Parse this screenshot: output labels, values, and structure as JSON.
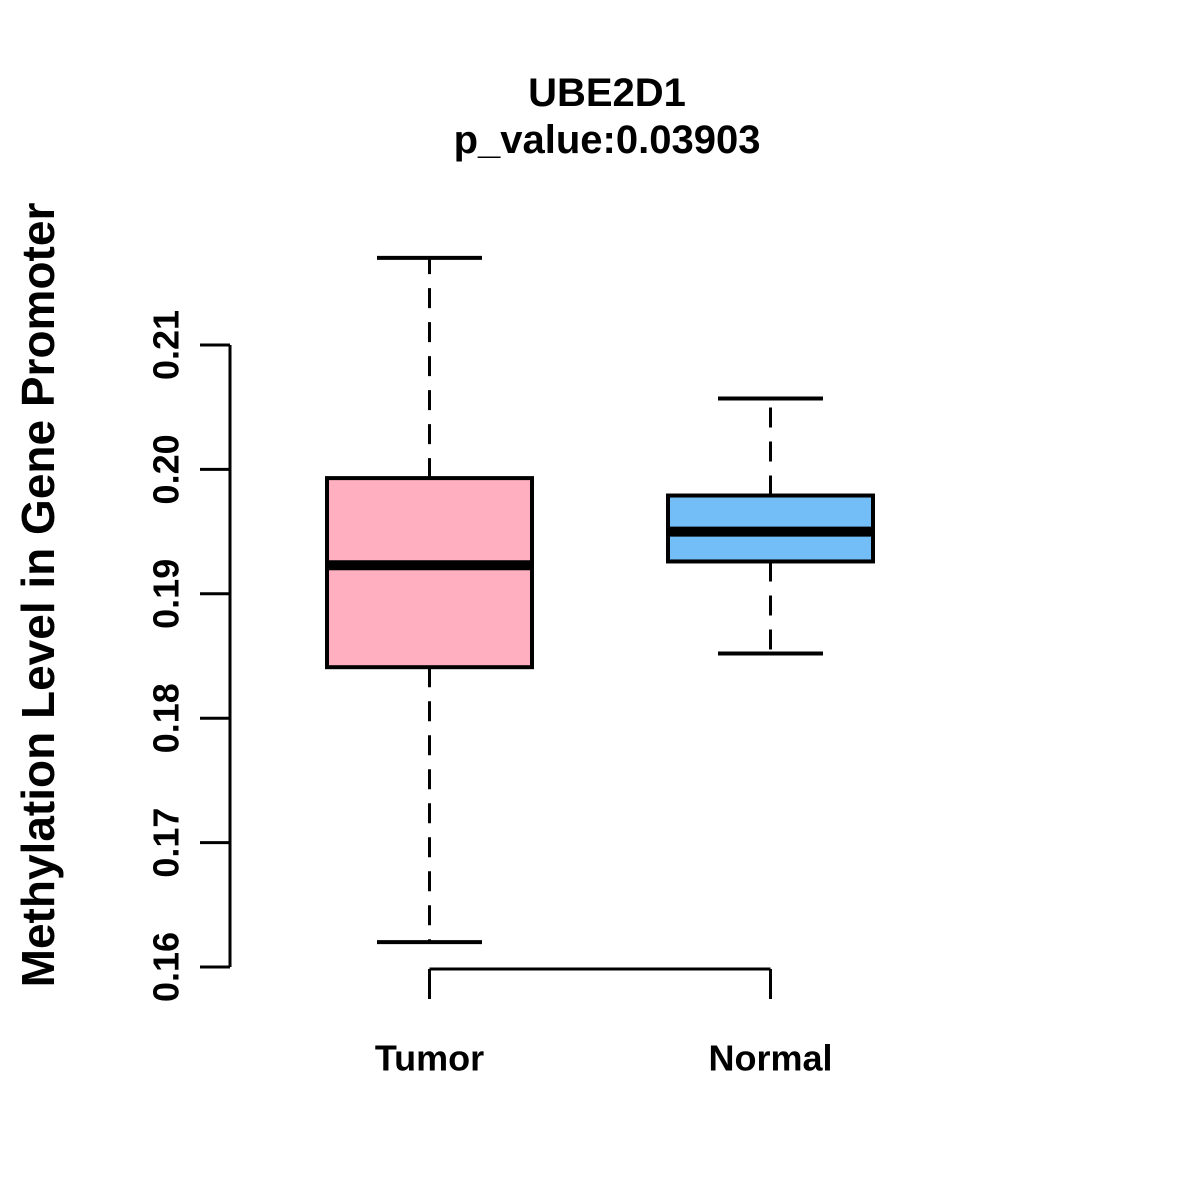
{
  "figure": {
    "title": "UBE2D1",
    "subtitle": "p_value:0.03903",
    "ylabel": "Methylation Level in Gene Promoter",
    "background_color": "#FFFFFF",
    "axis_color": "#000000"
  },
  "chart_data": {
    "type": "boxplot",
    "title": "UBE2D1",
    "subtitle": "p_value:0.03903",
    "p_value": 0.03903,
    "ylabel": "Methylation Level in Gene Promoter",
    "xlabel": "",
    "ylim": [
      0.16,
      0.21
    ],
    "yticks": [
      "0.16",
      "0.17",
      "0.18",
      "0.19",
      "0.20",
      "0.21"
    ],
    "grid": false,
    "legend": false,
    "whisker_style": "dashed",
    "categories": [
      "Tumor",
      "Normal"
    ],
    "series": [
      {
        "name": "Tumor",
        "fill_color": "#FFAFC0",
        "whisker_low": 0.162,
        "q1": 0.1841,
        "median": 0.1923,
        "q3": 0.1993,
        "whisker_high": 0.217,
        "outliers": []
      },
      {
        "name": "Normal",
        "fill_color": "#74BEF8",
        "whisker_low": 0.1852,
        "q1": 0.1926,
        "median": 0.195,
        "q3": 0.1979,
        "whisker_high": 0.2057,
        "outliers": []
      }
    ]
  }
}
